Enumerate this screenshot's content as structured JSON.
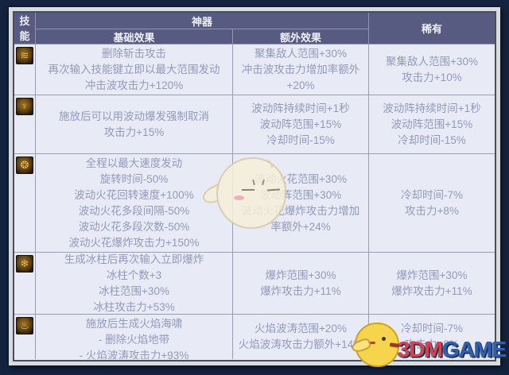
{
  "header": {
    "skill_col": "技能",
    "artifact": "神器",
    "base": "基础效果",
    "extra": "额外效果",
    "rare": "稀有"
  },
  "rows": [
    {
      "icon": "slash-wave-skill-icon",
      "glyph": "≋",
      "base": [
        "删除斩击攻击",
        "再次输入技能键立即以最大范围发动",
        "冲击波攻击力+120%"
      ],
      "extra": [
        "聚集敌人范围+30%",
        "冲击波攻击力增加率额外",
        "+20%"
      ],
      "rare": [
        "聚集敌人范围+30%",
        "攻击力+10%"
      ]
    },
    {
      "icon": "wave-burst-skill-icon",
      "glyph": "♆",
      "base": [
        "施放后可以用波动爆发强制取消",
        "攻击力+15%"
      ],
      "extra": [
        "波动阵持续时间+1秒",
        "波动阵范围+15%",
        "冷却时间-15%"
      ],
      "rare": [
        "波动阵持续时间+1秒",
        "波动阵范围+15%",
        "冷却时间-15%"
      ]
    },
    {
      "icon": "wave-spark-skill-icon",
      "glyph": "❂",
      "base": [
        "全程以最大速度发动",
        "旋转时间-50%",
        "波动火花回转速度+100%",
        "波动火花多段间隔-50%",
        "波动火花多段次数-50%",
        "波动火花爆炸攻击力+150%"
      ],
      "extra": [
        "波动火花范围+30%",
        "波动阵范围+30%",
        "波动火花爆炸攻击力增加",
        "率额外+24%"
      ],
      "rare": [
        "冷却时间-7%",
        "攻击力+8%"
      ]
    },
    {
      "icon": "ice-pillar-skill-icon",
      "glyph": "❄",
      "base": [
        "生成冰柱后再次输入立即爆炸",
        "冰柱个数+3",
        "冰柱范围+30%",
        "冰柱攻击力+53%"
      ],
      "extra": [
        "爆炸范围+30%",
        "爆炸攻击力+11%"
      ],
      "rare": [
        "爆炸范围+30%",
        "爆炸攻击力+11%"
      ]
    },
    {
      "icon": "flame-tsunami-skill-icon",
      "glyph": "♨",
      "base": [
        "施放后生成火焰海啸",
        "- 删除火焰地带",
        "- 火焰波涛攻击力+93%"
      ],
      "extra": [
        "火焰波涛范围+20%",
        "火焰波涛攻击力额外+14%"
      ],
      "rare": [
        "冷却时间-7%",
        "攻击力+8%"
      ]
    }
  ],
  "watermark": {
    "brand_red": "3DM",
    "brand_blue": "GAME"
  },
  "colors": {
    "header_bg": "#575b81",
    "body_bg": "#e8ebf5",
    "body_text": "#9399bd",
    "grid_line": "#9aa0b2",
    "frame": "#d9dcdf",
    "background_navy": "#14233f",
    "icon_gold": "#ecc45c",
    "brand_red": "#cf4652",
    "brand_blue": "#2f5fae"
  }
}
